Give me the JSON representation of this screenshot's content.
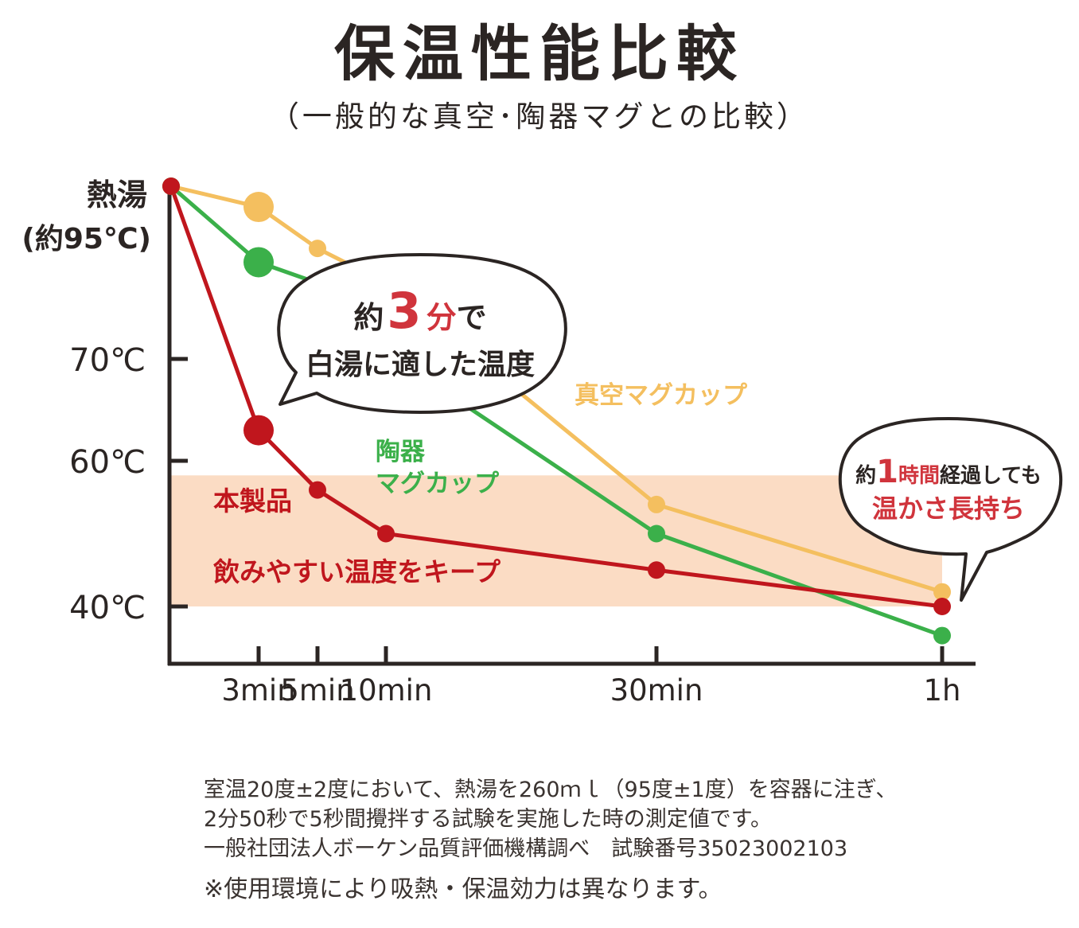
{
  "header": {
    "title": "保温性能比較",
    "subtitle": "（一般的な真空･陶器マグとの比較）"
  },
  "colors": {
    "product": "#c0161d",
    "ceramic": "#3bb04a",
    "vacuum": "#f4bf5f",
    "keep_band": "#fbdcc4",
    "axis": "#2b2523",
    "accent": "#d0343c"
  },
  "chart_data": {
    "type": "line",
    "title": "保温性能比較",
    "y_ticks": [
      {
        "label": "熱湯",
        "label2": "(約95℃)",
        "value": 95
      },
      {
        "label": "70℃",
        "value": 70
      },
      {
        "label": "60℃",
        "value": 60
      },
      {
        "label": "40℃",
        "value": 40
      }
    ],
    "x_ticks": [
      {
        "label": "3min",
        "value": 3
      },
      {
        "label": "5min",
        "value": 5
      },
      {
        "label": "10min",
        "value": 10
      },
      {
        "label": "30min",
        "value": 30
      },
      {
        "label": "1h",
        "value": 60
      }
    ],
    "x_points": [
      0,
      3,
      5,
      10,
      30,
      60
    ],
    "keep_range": [
      40,
      58
    ],
    "keep_label": "飲みやすい温度をキープ",
    "series": [
      {
        "name": "真空マグカップ",
        "color": "#f4bf5f",
        "values": [
          95,
          92,
          86,
          81,
          54,
          42
        ],
        "highlight_index": 1
      },
      {
        "name": "陶器マグカップ",
        "name_line1": "陶器",
        "name_line2": "マグカップ",
        "color": "#3bb04a",
        "values": [
          95,
          84,
          81,
          71,
          50,
          36
        ],
        "highlight_index": 1
      },
      {
        "name": "本製品",
        "color": "#c0161d",
        "values": [
          95,
          63,
          56,
          50,
          45,
          40
        ],
        "highlight_index": 1
      }
    ]
  },
  "callouts": {
    "left": {
      "pre": "約",
      "num": "3",
      "mid": "分",
      "post": "で",
      "line2": "白湯に適した温度"
    },
    "right": {
      "pre": "約",
      "num": "1",
      "mid": "時間",
      "post": "経過しても",
      "line2": "温かさ長持ち"
    }
  },
  "notes": {
    "line1": "室温20度±2度において、熱湯を260ｍｌ（95度±1度）を容器に注ぎ、",
    "line2": "2分50秒で5秒間攪拌する試験を実施した時の測定値です。",
    "line3": "一般社団法人ボーケン品質評価機構調べ　試験番号35023002103",
    "caution": "※使用環境により吸熱・保温効力は異なります。"
  }
}
